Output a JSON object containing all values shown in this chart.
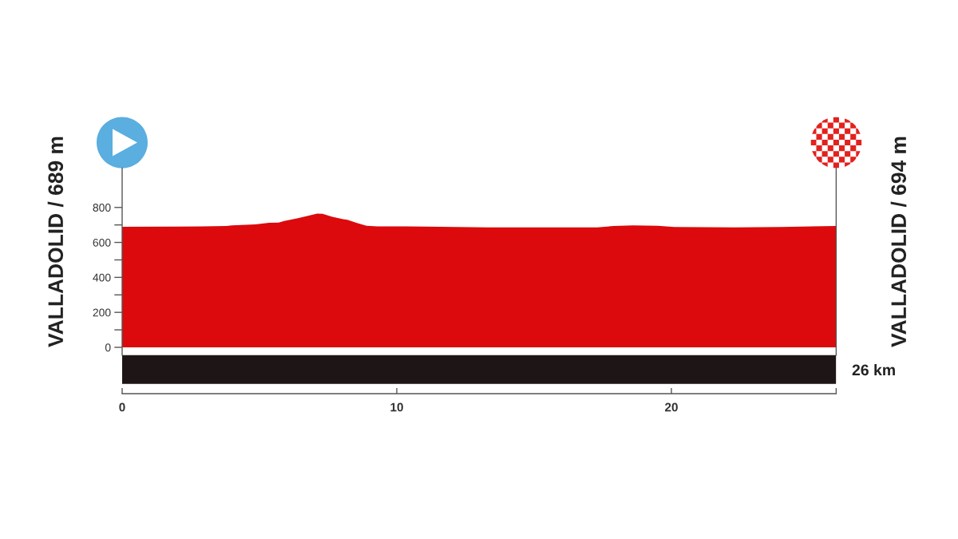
{
  "chart_data": {
    "type": "area",
    "x": [
      0,
      2,
      3.8,
      4.0,
      4.85,
      5.35,
      5.7,
      5.9,
      6.4,
      6.8,
      7.1,
      7.3,
      7.65,
      8.05,
      8.2,
      8.55,
      8.9,
      9.3,
      11,
      13.3,
      17.3,
      17.9,
      18.6,
      19.5,
      20.1,
      22.3,
      24,
      26
    ],
    "values": [
      689,
      690,
      694,
      697,
      703,
      712,
      713,
      722,
      738,
      753,
      765,
      764,
      747,
      733,
      729,
      711,
      695,
      692,
      691,
      686,
      686,
      694,
      697,
      695,
      688,
      686,
      688,
      694
    ],
    "color": "#dc0a0c",
    "xlim": [
      0,
      26
    ],
    "xticks": [
      0,
      10,
      20,
      {
        "value": 26,
        "label": null
      }
    ],
    "ylim": [
      -265,
      1025
    ],
    "yticks": [
      0,
      {
        "value": 100,
        "label": null
      },
      200,
      {
        "value": 300,
        "label": null
      },
      400,
      {
        "value": 500,
        "label": null
      },
      600,
      {
        "value": 700,
        "label": null
      },
      800
    ],
    "bands": [
      {
        "axis": "y",
        "from": -209,
        "to": -45,
        "color": "#1e1616"
      }
    ],
    "annotations": [
      "VALLADOLID / 689 m",
      "VALLADOLID / 694 m",
      "26 km"
    ],
    "grid": false
  }
}
